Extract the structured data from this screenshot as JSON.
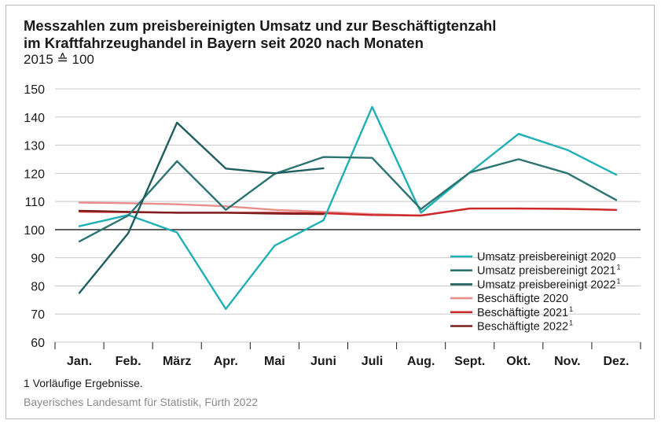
{
  "title_line1": "Messzahlen zum preisbereinigten Umsatz und zur Beschäftigtenzahl",
  "title_line2": "im Kraftfahrzeughandel in Bayern seit 2020 nach Monaten",
  "unit": "2015 ≙ 100",
  "footnote": "1  Vorläufige Ergebnisse.",
  "source": "Bayerisches Landesamt für Statistik, Fürth 2022",
  "chart_data": {
    "type": "line",
    "categories": [
      "Jan.",
      "Feb.",
      "März",
      "Apr.",
      "Mai",
      "Juni",
      "Juli",
      "Aug.",
      "Sept.",
      "Okt.",
      "Nov.",
      "Dez."
    ],
    "ylim": [
      60,
      150
    ],
    "yticks": [
      60,
      70,
      80,
      90,
      100,
      110,
      120,
      130,
      140,
      150
    ],
    "reference_line": 100,
    "grid": true,
    "legend_position": "bottom-right",
    "series": [
      {
        "name": "Umsatz preisbereinigt 2020",
        "footnote": "",
        "color": "#1fb0b5",
        "values": [
          101.2,
          105.2,
          99.0,
          71.8,
          94.3,
          103.3,
          143.6,
          106.0,
          120.3,
          134.0,
          128.3,
          119.5
        ]
      },
      {
        "name": "Umsatz preisbereinigt 2021",
        "footnote": "1",
        "color": "#2c7472",
        "values": [
          95.8,
          105.0,
          124.3,
          107.0,
          119.8,
          125.8,
          125.5,
          107.3,
          120.3,
          125.0,
          120.0,
          110.5
        ]
      },
      {
        "name": "Umsatz preisbereinigt 2022",
        "footnote": "1",
        "color": "#1e5d5e",
        "values": [
          77.5,
          98.7,
          138.0,
          121.7,
          120.0,
          121.8,
          null,
          null,
          null,
          null,
          null,
          null
        ]
      },
      {
        "name": "Beschäftigte 2020",
        "footnote": "",
        "color": "#ea8c8c",
        "values": [
          109.6,
          109.4,
          109.0,
          108.3,
          107.0,
          106.3,
          105.5,
          105.0,
          107.5,
          107.5,
          107.3,
          107.0
        ]
      },
      {
        "name": "Beschäftigte 2021",
        "footnote": "1",
        "color": "#cc2a2a",
        "values": [
          106.4,
          106.2,
          106.0,
          106.0,
          106.0,
          105.8,
          105.2,
          105.0,
          107.5,
          107.5,
          107.4,
          107.0
        ]
      },
      {
        "name": "Beschäftigte 2022",
        "footnote": "1",
        "color": "#7c1f1f",
        "values": [
          106.7,
          106.3,
          106.0,
          106.0,
          105.7,
          105.5,
          null,
          null,
          null,
          null,
          null,
          null
        ]
      }
    ]
  }
}
